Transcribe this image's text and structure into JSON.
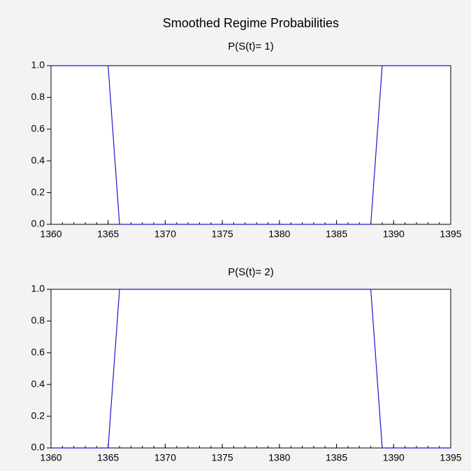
{
  "title": "Smoothed Regime Probabilities",
  "chart_data": [
    {
      "type": "line",
      "subtitle": "P(S(t)= 1)",
      "x": [
        1360,
        1361,
        1362,
        1363,
        1364,
        1365,
        1366,
        1367,
        1368,
        1369,
        1370,
        1371,
        1372,
        1373,
        1374,
        1375,
        1376,
        1377,
        1378,
        1379,
        1380,
        1381,
        1382,
        1383,
        1384,
        1385,
        1386,
        1387,
        1388,
        1389,
        1390,
        1391,
        1392,
        1393,
        1394,
        1395
      ],
      "series": [
        {
          "name": "P(S(t)= 1)",
          "color": "#1a1acc",
          "values": [
            1,
            1,
            1,
            1,
            1,
            1,
            0,
            0,
            0,
            0,
            0,
            0,
            0,
            0,
            0,
            0,
            0,
            0,
            0,
            0,
            0,
            0,
            0,
            0,
            0,
            0,
            0,
            0,
            0,
            1,
            1,
            1,
            1,
            1,
            1,
            1
          ]
        }
      ],
      "xlim": [
        1360,
        1395
      ],
      "xticks": [
        1360,
        1365,
        1370,
        1375,
        1380,
        1385,
        1390,
        1395
      ],
      "ylim": [
        0,
        1
      ],
      "yticks": [
        {
          "value": 0,
          "label": "0.0"
        },
        {
          "value": 0.2,
          "label": "0.2"
        },
        {
          "value": 0.4,
          "label": "0.4"
        },
        {
          "value": 0.6,
          "label": "0.6"
        },
        {
          "value": 0.8,
          "label": "0.8"
        },
        {
          "value": 1,
          "label": "1.0"
        }
      ]
    },
    {
      "type": "line",
      "subtitle": "P(S(t)= 2)",
      "x": [
        1360,
        1361,
        1362,
        1363,
        1364,
        1365,
        1366,
        1367,
        1368,
        1369,
        1370,
        1371,
        1372,
        1373,
        1374,
        1375,
        1376,
        1377,
        1378,
        1379,
        1380,
        1381,
        1382,
        1383,
        1384,
        1385,
        1386,
        1387,
        1388,
        1389,
        1390,
        1391,
        1392,
        1393,
        1394,
        1395
      ],
      "series": [
        {
          "name": "P(S(t)= 2)",
          "color": "#1a1acc",
          "values": [
            0,
            0,
            0,
            0,
            0,
            0,
            1,
            1,
            1,
            1,
            1,
            1,
            1,
            1,
            1,
            1,
            1,
            1,
            1,
            1,
            1,
            1,
            1,
            1,
            1,
            1,
            1,
            1,
            1,
            0,
            0,
            0,
            0,
            0,
            0,
            0
          ]
        }
      ],
      "xlim": [
        1360,
        1395
      ],
      "xticks": [
        1360,
        1365,
        1370,
        1375,
        1380,
        1385,
        1390,
        1395
      ],
      "ylim": [
        0,
        1
      ],
      "yticks": [
        {
          "value": 0,
          "label": "0.0"
        },
        {
          "value": 0.2,
          "label": "0.2"
        },
        {
          "value": 0.4,
          "label": "0.4"
        },
        {
          "value": 0.6,
          "label": "0.6"
        },
        {
          "value": 0.8,
          "label": "0.8"
        },
        {
          "value": 1,
          "label": "1.0"
        }
      ]
    }
  ]
}
